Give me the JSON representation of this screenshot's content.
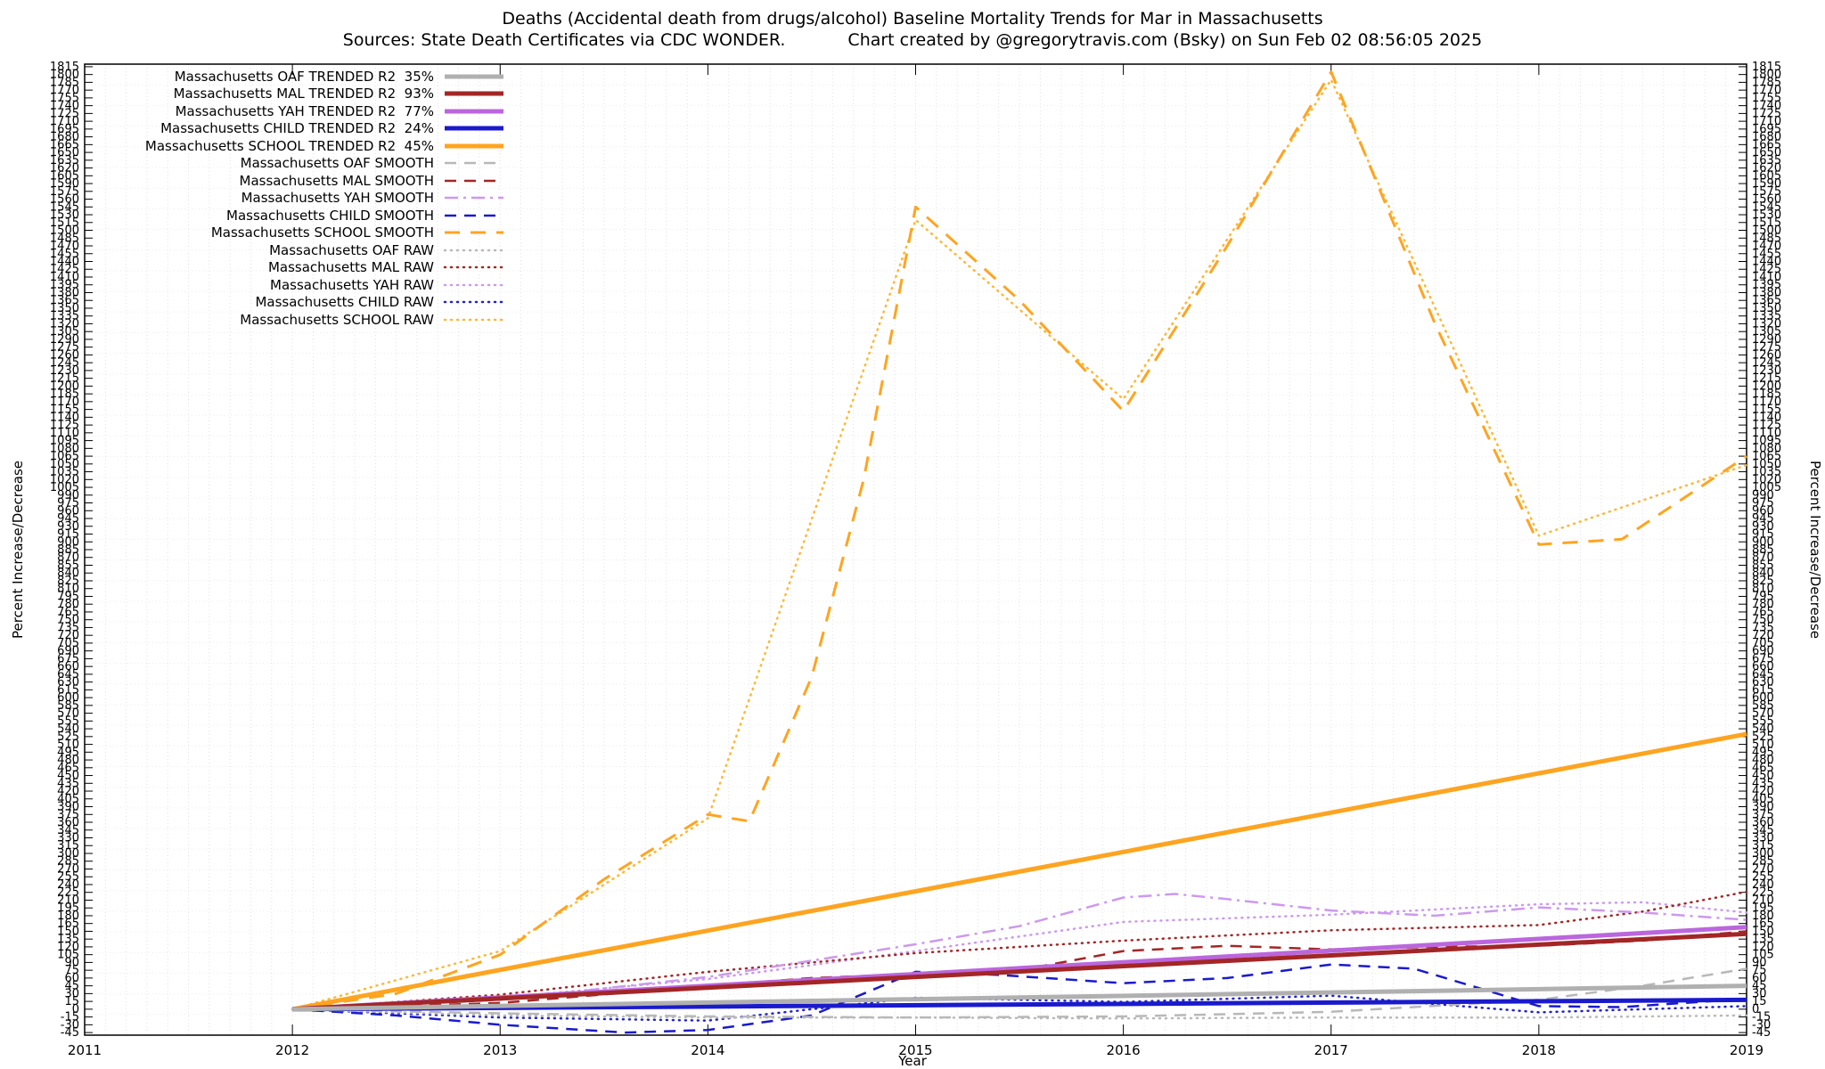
{
  "header": {
    "title": "Deaths (Accidental death from drugs/alcohol)  Baseline Mortality Trends for Mar in Massachusetts",
    "sources": "Sources: State Death Certificates via CDC WONDER.",
    "credit": "Chart created by @gregorytravis.com (Bsky) on Sun Feb 02 08:56:05 2025"
  },
  "chart_data": {
    "type": "line",
    "title": "Deaths (Accidental death from drugs/alcohol)  Baseline Mortality Trends for Mar in Massachusetts",
    "xlabel": "Year",
    "ylabel": "Percent Increase/Decrease",
    "xlim": [
      2011,
      2019
    ],
    "ylim": [
      -50,
      1820
    ],
    "x_ticks": [
      2011,
      2012,
      2013,
      2014,
      2015,
      2016,
      2017,
      2018,
      2019
    ],
    "y_tick_step": 15,
    "grid": true,
    "legend_position": "top-left",
    "series": [
      {
        "id": "oaf-trended",
        "label": "Massachusetts OAF TRENDED R2  35%",
        "r2": "35%",
        "color": "#b0b0b0",
        "style": "solid",
        "width": 5,
        "dash": "",
        "points": [
          [
            2012,
            0
          ],
          [
            2019,
            45
          ]
        ]
      },
      {
        "id": "mal-trended",
        "label": "Massachusetts MAL TRENDED R2  93%",
        "r2": "93%",
        "color": "#a32626",
        "style": "solid",
        "width": 5,
        "dash": "",
        "points": [
          [
            2012,
            0
          ],
          [
            2019,
            145
          ]
        ]
      },
      {
        "id": "yah-trended",
        "label": "Massachusetts YAH TRENDED R2  77%",
        "r2": "77%",
        "color": "#bb66dd",
        "style": "solid",
        "width": 5,
        "dash": "",
        "points": [
          [
            2012,
            0
          ],
          [
            2019,
            158
          ]
        ]
      },
      {
        "id": "child-trended",
        "label": "Massachusetts CHILD TRENDED R2  24%",
        "r2": "24%",
        "color": "#1a1acd",
        "style": "solid",
        "width": 5,
        "dash": "",
        "points": [
          [
            2012,
            0
          ],
          [
            2019,
            18
          ]
        ]
      },
      {
        "id": "school-trended",
        "label": "Massachusetts SCHOOL TRENDED R2  45%",
        "r2": "45%",
        "color": "#ffa420",
        "style": "solid",
        "width": 5,
        "dash": "",
        "points": [
          [
            2012,
            0
          ],
          [
            2019,
            530
          ]
        ]
      },
      {
        "id": "oaf-smooth",
        "label": "Massachusetts OAF SMOOTH",
        "color": "#b8b8b8",
        "style": "dashed",
        "width": 2.5,
        "dash": "13,9",
        "points": [
          [
            2012,
            0
          ],
          [
            2013,
            -8
          ],
          [
            2014,
            -14
          ],
          [
            2015,
            -16
          ],
          [
            2016,
            -14
          ],
          [
            2017,
            -5
          ],
          [
            2018,
            18
          ],
          [
            2018.5,
            45
          ],
          [
            2019,
            78
          ]
        ]
      },
      {
        "id": "mal-smooth",
        "label": "Massachusetts MAL SMOOTH",
        "color": "#a32626",
        "style": "dashed",
        "width": 2.5,
        "dash": "13,9",
        "points": [
          [
            2012,
            0
          ],
          [
            2013,
            12
          ],
          [
            2014,
            45
          ],
          [
            2014.5,
            60
          ],
          [
            2015,
            68
          ],
          [
            2015.5,
            75
          ],
          [
            2016,
            112
          ],
          [
            2016.5,
            122
          ],
          [
            2017,
            115
          ],
          [
            2017.5,
            120
          ],
          [
            2018,
            122
          ],
          [
            2018.5,
            132
          ],
          [
            2019,
            150
          ]
        ]
      },
      {
        "id": "yah-smooth",
        "label": "Massachusetts YAH SMOOTH",
        "color": "#cc99ee",
        "style": "dash-dot",
        "width": 2.5,
        "dash": "15,6,3,6",
        "points": [
          [
            2012,
            0
          ],
          [
            2013,
            18
          ],
          [
            2014,
            62
          ],
          [
            2015,
            125
          ],
          [
            2015.5,
            160
          ],
          [
            2016,
            215
          ],
          [
            2016.25,
            222
          ],
          [
            2016.5,
            212
          ],
          [
            2017,
            190
          ],
          [
            2017.5,
            180
          ],
          [
            2018,
            196
          ],
          [
            2018.5,
            186
          ],
          [
            2019,
            172
          ]
        ]
      },
      {
        "id": "child-smooth",
        "label": "Massachusetts CHILD SMOOTH",
        "color": "#1a1acd",
        "style": "dashed",
        "width": 2.5,
        "dash": "13,9",
        "points": [
          [
            2012,
            0
          ],
          [
            2012.5,
            -12
          ],
          [
            2013,
            -30
          ],
          [
            2013.6,
            -45
          ],
          [
            2014,
            -40
          ],
          [
            2014.5,
            -12
          ],
          [
            2015,
            72
          ],
          [
            2015.4,
            66
          ],
          [
            2016,
            50
          ],
          [
            2016.5,
            60
          ],
          [
            2017,
            86
          ],
          [
            2017.4,
            78
          ],
          [
            2018,
            6
          ],
          [
            2018.4,
            4
          ],
          [
            2019,
            20
          ]
        ]
      },
      {
        "id": "school-smooth",
        "label": "Massachusetts SCHOOL SMOOTH",
        "color": "#ffa420",
        "style": "dashed",
        "width": 3,
        "dash": "17,12",
        "points": [
          [
            2012,
            0
          ],
          [
            2012.5,
            30
          ],
          [
            2013,
            105
          ],
          [
            2013.5,
            250
          ],
          [
            2014,
            375
          ],
          [
            2014.2,
            362
          ],
          [
            2014.5,
            640
          ],
          [
            2014.75,
            1020
          ],
          [
            2015,
            1545
          ],
          [
            2015.5,
            1365
          ],
          [
            2016,
            1152
          ],
          [
            2016.5,
            1470
          ],
          [
            2017,
            1805
          ],
          [
            2017.5,
            1320
          ],
          [
            2018,
            895
          ],
          [
            2018.4,
            905
          ],
          [
            2018.7,
            985
          ],
          [
            2019,
            1065
          ]
        ]
      },
      {
        "id": "oaf-raw",
        "label": "Massachusetts OAF RAW",
        "color": "#b8b8b8",
        "style": "dotted",
        "width": 2.5,
        "dash": "1,6",
        "points": [
          [
            2012,
            0
          ],
          [
            2013,
            -12
          ],
          [
            2014,
            -16
          ],
          [
            2015,
            -16
          ],
          [
            2016,
            -18
          ],
          [
            2017,
            -16
          ],
          [
            2018,
            -16
          ],
          [
            2019,
            -12
          ]
        ]
      },
      {
        "id": "mal-raw",
        "label": "Massachusetts MAL RAW",
        "color": "#a32626",
        "style": "dotted",
        "width": 2.5,
        "dash": "1,6",
        "points": [
          [
            2012,
            0
          ],
          [
            2013,
            28
          ],
          [
            2014,
            72
          ],
          [
            2015,
            108
          ],
          [
            2016,
            132
          ],
          [
            2017,
            152
          ],
          [
            2018,
            162
          ],
          [
            2018.5,
            188
          ],
          [
            2019,
            226
          ]
        ]
      },
      {
        "id": "yah-raw",
        "label": "Massachusetts YAH RAW",
        "color": "#cc99ee",
        "style": "dotted",
        "width": 2.5,
        "dash": "1,6",
        "points": [
          [
            2012,
            0
          ],
          [
            2013,
            22
          ],
          [
            2014,
            58
          ],
          [
            2015,
            112
          ],
          [
            2016,
            168
          ],
          [
            2017,
            182
          ],
          [
            2018,
            202
          ],
          [
            2018.5,
            206
          ],
          [
            2019,
            186
          ]
        ]
      },
      {
        "id": "child-raw",
        "label": "Massachusetts CHILD RAW",
        "color": "#2222cc",
        "style": "dotted",
        "width": 2.5,
        "dash": "1,6",
        "points": [
          [
            2012,
            0
          ],
          [
            2013,
            -16
          ],
          [
            2014,
            -22
          ],
          [
            2015,
            22
          ],
          [
            2016,
            14
          ],
          [
            2017,
            26
          ],
          [
            2018,
            -6
          ],
          [
            2019,
            6
          ]
        ]
      },
      {
        "id": "school-raw",
        "label": "Massachusetts SCHOOL RAW",
        "color": "#ffb733",
        "style": "dotted",
        "width": 2.5,
        "dash": "1,6",
        "points": [
          [
            2012,
            0
          ],
          [
            2013,
            112
          ],
          [
            2014,
            368
          ],
          [
            2015,
            1520
          ],
          [
            2016,
            1175
          ],
          [
            2017,
            1790
          ],
          [
            2018,
            912
          ],
          [
            2019,
            1048
          ]
        ]
      }
    ]
  }
}
